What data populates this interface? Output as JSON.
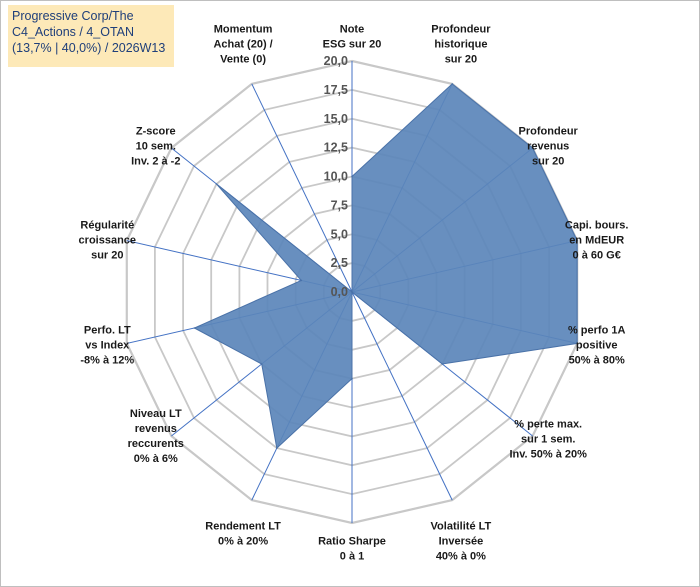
{
  "chart_data": {
    "type": "radar",
    "title_lines": [
      "Progressive Corp/The",
      "C4_Actions / 4_OTAN",
      "(13,7% | 40,0%) / 2026W13"
    ],
    "rmin": 0,
    "rmax": 20,
    "tick_step": 2.5,
    "tick_labels": [
      "0,0",
      "2,5",
      "5,0",
      "7,5",
      "10,0",
      "12,5",
      "15,0",
      "17,5",
      "20,0"
    ],
    "grid": true,
    "colors": {
      "fill": "#5b85ba",
      "stroke": "#4a72a8",
      "axis": "#4472c4",
      "grid": "#c8c8c8"
    },
    "axes": [
      {
        "label": [
          "Note",
          "ESG sur 20"
        ],
        "value": 10
      },
      {
        "label": [
          "Profondeur",
          "historique",
          "sur 20"
        ],
        "value": 20
      },
      {
        "label": [
          "Profondeur",
          "revenus",
          "sur 20"
        ],
        "value": 20
      },
      {
        "label": [
          "Capi. bours.",
          "en MdEUR",
          "0 à 60 G€"
        ],
        "value": 20
      },
      {
        "label": [
          "% perfo 1A",
          "positive",
          "50% à 80%"
        ],
        "value": 20
      },
      {
        "label": [
          "% perte max.",
          "sur 1 sem.",
          "Inv. 50% à 20%"
        ],
        "value": 10
      },
      {
        "label": [
          "Volatilité LT",
          "Inversée",
          "40% à 0%"
        ],
        "value": 0
      },
      {
        "label": [
          "Ratio Sharpe",
          "0 à 1"
        ],
        "value": 7.5
      },
      {
        "label": [
          "Rendement LT",
          "0% à 20%"
        ],
        "value": 15
      },
      {
        "label": [
          "Niveau LT",
          "revenus",
          "reccurents",
          "0% à 6%"
        ],
        "value": 10
      },
      {
        "label": [
          "Perfo. LT",
          "vs Index",
          "-8% à 12%"
        ],
        "value": 14
      },
      {
        "label": [
          "Régularité",
          "croissance",
          "sur 20"
        ],
        "value": 4.5
      },
      {
        "label": [
          "Z-score",
          "10 sem.",
          "Inv. 2 à -2"
        ],
        "value": 15
      },
      {
        "label": [
          "Momentum",
          "Achat (20) /",
          "Vente (0)"
        ],
        "value": 0
      }
    ]
  }
}
